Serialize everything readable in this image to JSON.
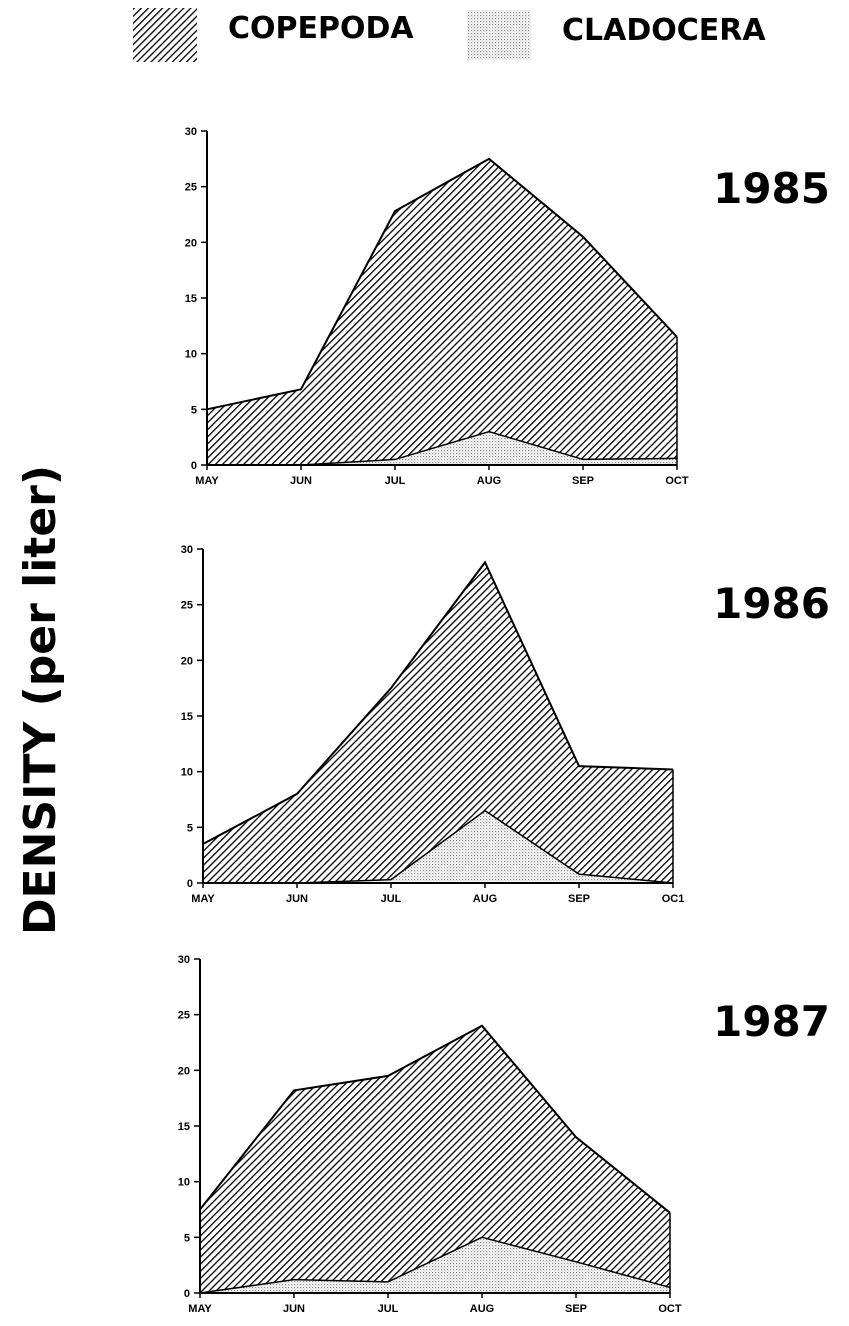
{
  "legend": {
    "copepoda_label": "COPEPODA",
    "cladocera_label": "CLADOCERA"
  },
  "ylabel": "DENSITY (per liter)",
  "chart_data": [
    {
      "type": "area",
      "title": "1985",
      "categories": [
        "MAY",
        "JUN",
        "JUL",
        "AUG",
        "SEP",
        "OCT"
      ],
      "series": [
        {
          "name": "COPEPODA",
          "values": [
            5,
            6.8,
            22.8,
            27.5,
            20.5,
            11.5
          ]
        },
        {
          "name": "CLADOCERA",
          "values": [
            0,
            0,
            0.5,
            3,
            0.5,
            0.6
          ]
        }
      ],
      "ylim": [
        0,
        30
      ],
      "yticks": [
        0,
        5,
        10,
        15,
        20,
        25,
        30
      ],
      "ytick_labels": [
        "0",
        "5",
        "10",
        "15",
        "20",
        "25",
        "30"
      ],
      "xtick_labels": [
        "MAY",
        "JUN",
        "JUL",
        "AUG",
        "SEP",
        "OCT"
      ]
    },
    {
      "type": "area",
      "title": "1986",
      "categories": [
        "MAY",
        "JUN",
        "JUL",
        "AUG",
        "SEP",
        "OCT"
      ],
      "series": [
        {
          "name": "COPEPODA",
          "values": [
            3.5,
            8,
            17.5,
            28.8,
            10.5,
            10.2
          ]
        },
        {
          "name": "CLADOCERA",
          "values": [
            0,
            0,
            0.3,
            6.5,
            0.8,
            0
          ]
        }
      ],
      "ylim": [
        0,
        30
      ],
      "yticks": [
        0,
        5,
        10,
        15,
        20,
        25,
        30
      ],
      "ytick_labels": [
        "0",
        "5",
        "10",
        "15",
        "20",
        "25",
        "30"
      ],
      "xtick_labels": [
        "MAY",
        "JUN",
        "JUL",
        "AUG",
        "SEP",
        "OC1"
      ]
    },
    {
      "type": "area",
      "title": "1987",
      "categories": [
        "MAY",
        "JUN",
        "JUL",
        "AUG",
        "SEP",
        "OCT"
      ],
      "series": [
        {
          "name": "COPEPODA",
          "values": [
            7.5,
            18.2,
            19.5,
            24,
            14,
            7.2
          ]
        },
        {
          "name": "CLADOCERA",
          "values": [
            0,
            1.2,
            1,
            5,
            2.8,
            0.5
          ]
        }
      ],
      "ylim": [
        0,
        30
      ],
      "yticks": [
        0,
        5,
        10,
        15,
        20,
        25,
        30
      ],
      "ytick_labels": [
        "0",
        "5",
        "10",
        "15",
        "20",
        "25",
        "30"
      ],
      "xtick_labels": [
        "MAY",
        "JUN",
        "JUL",
        "AUG",
        "SEP",
        "OCT"
      ]
    }
  ]
}
